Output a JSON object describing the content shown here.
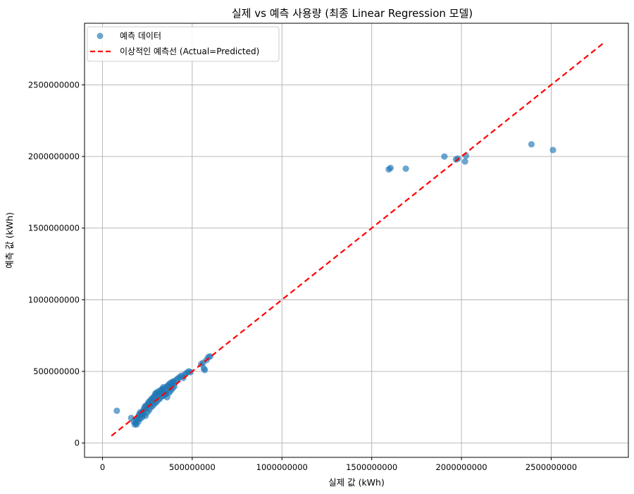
{
  "chart_data": {
    "type": "scatter",
    "title": "실제 vs 예측 사용량 (최종 Linear Regression 모델)",
    "xlabel": "실제 값 (kWh)",
    "ylabel": "예측 값 (kWh)",
    "xlim": [
      -100000000,
      2930000000
    ],
    "ylim": [
      -100000000,
      2930000000
    ],
    "x_ticks": [
      0,
      500000000,
      1000000000,
      1500000000,
      2000000000,
      2500000000
    ],
    "y_ticks": [
      0,
      500000000,
      1000000000,
      1500000000,
      2000000000,
      2500000000
    ],
    "x_tick_labels": [
      "0",
      "500000000",
      "1000000000",
      "1500000000",
      "2000000000",
      "2500000000"
    ],
    "y_tick_labels": [
      "0",
      "500000000",
      "1000000000",
      "1500000000",
      "2000000000",
      "2500000000"
    ],
    "grid": true,
    "legend_position": "top-left",
    "series": [
      {
        "name": "예측 데이터",
        "kind": "scatter",
        "color": "#1f77b4",
        "x": [
          80000000,
          160000000,
          175000000,
          180000000,
          185000000,
          190000000,
          195000000,
          200000000,
          205000000,
          210000000,
          215000000,
          220000000,
          225000000,
          230000000,
          235000000,
          240000000,
          245000000,
          250000000,
          255000000,
          260000000,
          265000000,
          270000000,
          275000000,
          280000000,
          285000000,
          290000000,
          295000000,
          300000000,
          305000000,
          310000000,
          315000000,
          320000000,
          325000000,
          330000000,
          335000000,
          340000000,
          345000000,
          350000000,
          355000000,
          360000000,
          365000000,
          370000000,
          375000000,
          380000000,
          385000000,
          390000000,
          395000000,
          400000000,
          410000000,
          420000000,
          430000000,
          440000000,
          450000000,
          460000000,
          470000000,
          480000000,
          490000000,
          550000000,
          560000000,
          565000000,
          570000000,
          580000000,
          590000000,
          600000000,
          190000000,
          200000000,
          210000000,
          220000000,
          230000000,
          240000000,
          250000000,
          260000000,
          270000000,
          280000000,
          290000000,
          300000000,
          310000000,
          320000000,
          330000000,
          340000000,
          350000000,
          360000000,
          370000000,
          380000000,
          390000000,
          400000000,
          1595000000,
          1605000000,
          1690000000,
          1905000000,
          1970000000,
          1980000000,
          2020000000,
          2025000000,
          2390000000,
          2510000000
        ],
        "y": [
          225000000,
          175000000,
          150000000,
          130000000,
          140000000,
          160000000,
          170000000,
          185000000,
          200000000,
          215000000,
          205000000,
          195000000,
          220000000,
          235000000,
          250000000,
          260000000,
          240000000,
          265000000,
          280000000,
          290000000,
          270000000,
          300000000,
          310000000,
          295000000,
          320000000,
          330000000,
          345000000,
          350000000,
          335000000,
          360000000,
          340000000,
          355000000,
          370000000,
          365000000,
          380000000,
          390000000,
          375000000,
          360000000,
          345000000,
          395000000,
          400000000,
          410000000,
          385000000,
          420000000,
          405000000,
          425000000,
          430000000,
          415000000,
          440000000,
          450000000,
          460000000,
          470000000,
          455000000,
          480000000,
          490000000,
          500000000,
          495000000,
          550000000,
          560000000,
          520000000,
          510000000,
          580000000,
          600000000,
          605000000,
          130000000,
          150000000,
          170000000,
          180000000,
          200000000,
          190000000,
          215000000,
          230000000,
          250000000,
          260000000,
          275000000,
          285000000,
          300000000,
          310000000,
          325000000,
          330000000,
          340000000,
          320000000,
          350000000,
          365000000,
          380000000,
          395000000,
          1910000000,
          1920000000,
          1915000000,
          2000000000,
          1980000000,
          1985000000,
          1965000000,
          2005000000,
          2085000000,
          2045000000
        ]
      },
      {
        "name": "이상적인 예측선 (Actual=Predicted)",
        "kind": "line",
        "style": "dashed",
        "color": "#ff0000",
        "x": [
          50000000,
          2790000000
        ],
        "y": [
          50000000,
          2790000000
        ]
      }
    ]
  }
}
